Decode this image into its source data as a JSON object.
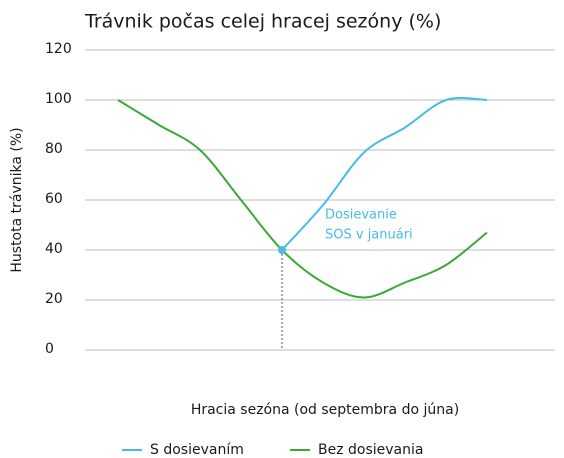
{
  "chart_data": {
    "type": "line",
    "title": "Trávnik počas celej hracej sezóny (%)",
    "y_label": "Hustota trávnika (%)",
    "x_label": "Hracia sezóna (od septembra do júna)",
    "annotation": [
      "Dosievanie",
      "SOS v januári"
    ],
    "x": [
      0,
      1,
      2,
      3,
      4,
      5,
      6,
      7,
      8,
      9
    ],
    "xlim": [
      0,
      9
    ],
    "marker_x": 4,
    "series": [
      {
        "name": "S dosievaním",
        "color": "#45bde6",
        "values": [
          null,
          null,
          null,
          null,
          40,
          58,
          79,
          89,
          100,
          100
        ]
      },
      {
        "name": "Bez dosievania",
        "color": "#3aa935",
        "values": [
          100,
          90,
          80,
          60,
          40,
          27,
          21,
          27,
          34,
          47
        ]
      }
    ],
    "ylim": [
      0,
      120
    ],
    "yticks": [
      0,
      20,
      40,
      60,
      80,
      100,
      120
    ],
    "grid": true,
    "legend": "bottom"
  }
}
